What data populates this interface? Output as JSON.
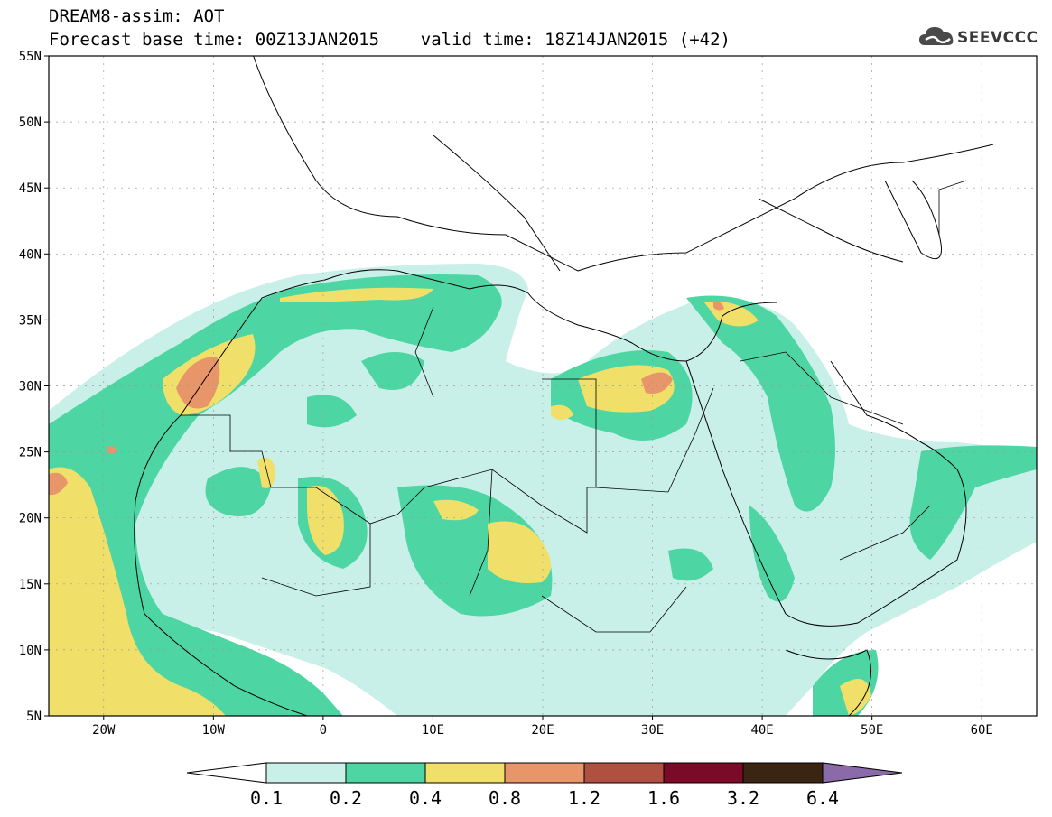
{
  "title": {
    "line1": "DREAM8-assim: AOT",
    "line2": "Forecast base time: 00Z13JAN2015    valid time: 18Z14JAN2015 (+42)"
  },
  "logo": {
    "text": "SEEVCCC",
    "icon": "cloud-icon"
  },
  "map": {
    "lat_labels": [
      "55N",
      "50N",
      "45N",
      "40N",
      "35N",
      "30N",
      "25N",
      "20N",
      "15N",
      "10N",
      "5N"
    ],
    "lon_labels": [
      "20W",
      "10W",
      "0",
      "10E",
      "20E",
      "30E",
      "40E",
      "50E",
      "60E"
    ],
    "lon_range": [
      -25,
      65
    ],
    "lat_range": [
      5,
      55
    ]
  },
  "legend": {
    "labels": [
      "0.1",
      "0.2",
      "0.4",
      "0.8",
      "1.2",
      "1.6",
      "3.2",
      "6.4"
    ],
    "colors": [
      "#ffffff",
      "#c8f0e8",
      "#4dd6a4",
      "#f0e06a",
      "#e8956a",
      "#b05040",
      "#7a0a28",
      "#3a2412",
      "#8a6aa8"
    ]
  },
  "colors": {
    "low": "#c8f0e8",
    "mid": "#4dd6a4",
    "high": "#f0e06a",
    "vhigh": "#e8956a",
    "ext": "#b05040"
  }
}
